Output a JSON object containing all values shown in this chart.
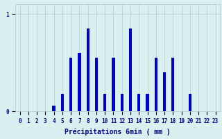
{
  "hours": [
    0,
    1,
    2,
    3,
    4,
    5,
    6,
    7,
    8,
    9,
    10,
    11,
    12,
    13,
    14,
    15,
    16,
    17,
    18,
    19,
    20,
    21,
    22,
    23
  ],
  "values": [
    0.0,
    0.0,
    0.0,
    0.0,
    0.06,
    0.18,
    0.55,
    0.6,
    0.85,
    0.55,
    0.18,
    0.55,
    0.18,
    0.85,
    0.18,
    0.18,
    0.55,
    0.4,
    0.55,
    0.0,
    0.18,
    0.0,
    0.0,
    0.0
  ],
  "bar_color": "#0000cc",
  "background_color": "#d8f0f0",
  "grid_color": "#b0c8c8",
  "xlabel": "Précipitations 6min ( mm )",
  "ylim": [
    0,
    1.1
  ],
  "yticks": [
    0,
    1
  ],
  "xtick_labels": [
    "0",
    "1",
    "2",
    "3",
    "4",
    "5",
    "6",
    "7",
    "8",
    "9",
    "10",
    "11",
    "12",
    "13",
    "14",
    "15",
    "16",
    "17",
    "18",
    "19",
    "20",
    "21",
    "22",
    "23"
  ],
  "text_color": "#00008b",
  "xlabel_fontsize": 7,
  "tick_fontsize": 5.5,
  "bar_width": 0.35
}
